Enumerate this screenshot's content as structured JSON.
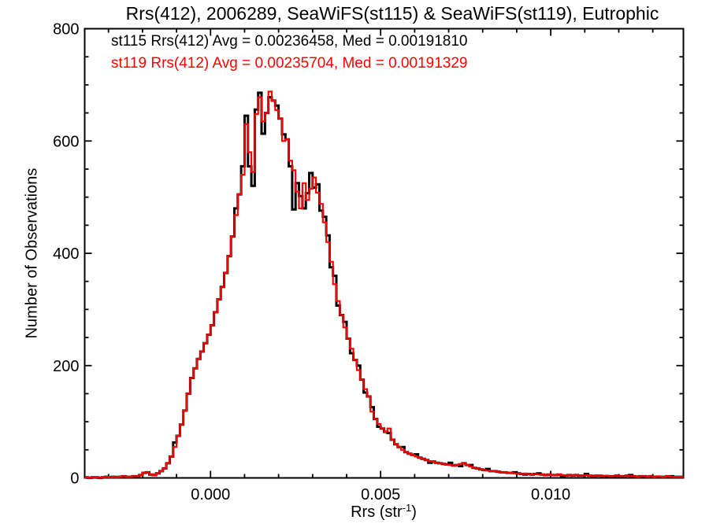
{
  "legend": {
    "lines": [
      {
        "text": "st115 Rrs(412) Avg = 0.00236458, Med = 0.00191810",
        "color": "#000000"
      },
      {
        "text": "st119 Rrs(412) Avg = 0.00235704, Med = 0.00191329",
        "color": "#ff0000"
      }
    ]
  },
  "xaxis_label": {
    "main": "Rrs (str",
    "sup": "-1",
    "close": ")"
  },
  "colors": {
    "background": "#ffffff",
    "axis": "#000000",
    "series_st115": "#000000",
    "series_st119": "#ff0000"
  },
  "chart_data": {
    "type": "line",
    "subtype": "step-histogram",
    "title": "Rrs(412), 2006289, SeaWiFS(st115) & SeaWiFS(st119), Eutrophic",
    "xlabel": "Rrs (str⁻¹)",
    "ylabel": "Number of Observations",
    "xlim": [
      -0.0037,
      0.0139
    ],
    "ylim": [
      0,
      800
    ],
    "grid": false,
    "legend_position": "top-left-inside",
    "x_major_ticks": [
      {
        "value": 0.0,
        "label": "0.000"
      },
      {
        "value": 0.005,
        "label": "0.005"
      },
      {
        "value": 0.01,
        "label": "0.010"
      }
    ],
    "x_minor_ticks": [
      -0.003,
      -0.002,
      -0.001,
      0.001,
      0.002,
      0.003,
      0.004,
      0.006,
      0.007,
      0.008,
      0.009,
      0.011,
      0.012,
      0.013
    ],
    "y_major_ticks": [
      {
        "value": 0,
        "label": "0"
      },
      {
        "value": 200,
        "label": "200"
      },
      {
        "value": 400,
        "label": "400"
      },
      {
        "value": 600,
        "label": "600"
      },
      {
        "value": 800,
        "label": "800"
      }
    ],
    "y_minor_ticks": [
      50,
      100,
      150,
      250,
      300,
      350,
      450,
      500,
      550,
      650,
      700,
      750
    ],
    "bins": {
      "start": -0.0037,
      "width": 0.0001,
      "count": 176
    },
    "series": [
      {
        "name": "st115",
        "label": "st115 Rrs(412)",
        "color": "#000000",
        "avg": 0.00236458,
        "med": 0.0019181,
        "counts": [
          1,
          0,
          1,
          1,
          0,
          1,
          2,
          1,
          2,
          1,
          2,
          3,
          2,
          2,
          3,
          3,
          5,
          9,
          10,
          6,
          5,
          8,
          12,
          17,
          26,
          38,
          63,
          75,
          95,
          120,
          150,
          178,
          195,
          212,
          225,
          240,
          255,
          272,
          295,
          318,
          340,
          365,
          395,
          430,
          480,
          505,
          555,
          645,
          555,
          520,
          656,
          686,
          613,
          650,
          678,
          672,
          663,
          640,
          612,
          603,
          555,
          478,
          525,
          502,
          480,
          507,
          543,
          517,
          523,
          476,
          465,
          432,
          375,
          360,
          307,
          290,
          278,
          248,
          222,
          210,
          200,
          175,
          152,
          145,
          126,
          105,
          91,
          88,
          82,
          80,
          68,
          60,
          55,
          55,
          46,
          43,
          41,
          42,
          36,
          34,
          32,
          27,
          29,
          27,
          26,
          25,
          24,
          27,
          22,
          23,
          21,
          26,
          23,
          23,
          18,
          17,
          15,
          14,
          16,
          12,
          12,
          11,
          10,
          10,
          9,
          9,
          10,
          8,
          7,
          6,
          7,
          6,
          7,
          8,
          6,
          5,
          6,
          5,
          5,
          6,
          3,
          4,
          5,
          4,
          5,
          4,
          4,
          7,
          4,
          3,
          4,
          4,
          3,
          2,
          3,
          3,
          4,
          3,
          3,
          4,
          5,
          3,
          2,
          3,
          3,
          2,
          3,
          2,
          2,
          2,
          2,
          3,
          3,
          2,
          2,
          2
        ]
      },
      {
        "name": "st119",
        "label": "st119 Rrs(412)",
        "color": "#ff0000",
        "avg": 0.00235704,
        "med": 0.00191329,
        "counts": [
          1,
          0,
          1,
          1,
          0,
          1,
          2,
          1,
          2,
          1,
          2,
          3,
          2,
          2,
          3,
          3,
          5,
          9,
          10,
          6,
          5,
          8,
          12,
          17,
          26,
          38,
          55,
          75,
          95,
          120,
          150,
          178,
          195,
          212,
          225,
          240,
          255,
          272,
          295,
          318,
          340,
          365,
          395,
          430,
          468,
          505,
          540,
          630,
          580,
          545,
          648,
          678,
          635,
          650,
          688,
          672,
          655,
          640,
          600,
          603,
          565,
          548,
          510,
          480,
          525,
          495,
          515,
          535,
          508,
          488,
          455,
          420,
          385,
          345,
          315,
          290,
          268,
          248,
          230,
          210,
          192,
          175,
          158,
          145,
          118,
          105,
          96,
          88,
          82,
          88,
          68,
          60,
          55,
          50,
          46,
          43,
          41,
          38,
          36,
          34,
          32,
          30,
          29,
          27,
          26,
          25,
          24,
          23,
          22,
          23,
          25,
          26,
          23,
          20,
          18,
          17,
          15,
          14,
          13,
          12,
          12,
          11,
          10,
          10,
          9,
          9,
          8,
          8,
          7,
          8,
          7,
          6,
          7,
          6,
          6,
          5,
          6,
          5,
          5,
          6,
          5,
          4,
          5,
          4,
          5,
          4,
          4,
          5,
          4,
          3,
          4,
          4,
          3,
          4,
          3,
          3,
          4,
          3,
          3,
          4,
          3,
          3,
          2,
          3,
          3,
          2,
          3,
          2,
          3,
          2,
          2,
          3,
          2,
          2,
          2,
          2
        ]
      }
    ]
  }
}
